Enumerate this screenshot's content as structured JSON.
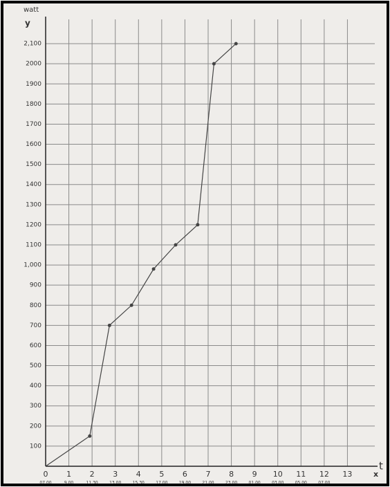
{
  "chart_data": {
    "type": "line",
    "y_title": "watt",
    "y_axis_letter": "y",
    "x_axis_letter": "x",
    "x_title": "t",
    "x": [
      0,
      1.9,
      2.75,
      3.7,
      4.65,
      5.6,
      6.55,
      7.25,
      8.2
    ],
    "values": [
      0,
      150,
      700,
      800,
      980,
      1100,
      1200,
      2000,
      2100
    ],
    "color": "#444444",
    "xlim": [
      0,
      14
    ],
    "ylim": [
      0,
      2200
    ],
    "xticks": [
      0,
      1,
      2,
      3,
      4,
      5,
      6,
      7,
      8,
      9,
      10,
      11,
      12,
      13
    ],
    "xtick_times": [
      "07.00",
      "9.00",
      "11.30",
      "13.00",
      "15.30",
      "17.00",
      "19.00",
      "21.00",
      "23.00",
      "01.00",
      "03.00",
      "05.00",
      "07.00",
      null
    ],
    "yticks": [
      100,
      200,
      300,
      400,
      500,
      600,
      700,
      800,
      900,
      {
        "value": 1000,
        "label": "1,000"
      },
      1100,
      1200,
      1300,
      1400,
      1500,
      1600,
      1700,
      1800,
      1900,
      2000,
      {
        "value": 2100,
        "label": "2,100"
      }
    ],
    "grid": true
  }
}
